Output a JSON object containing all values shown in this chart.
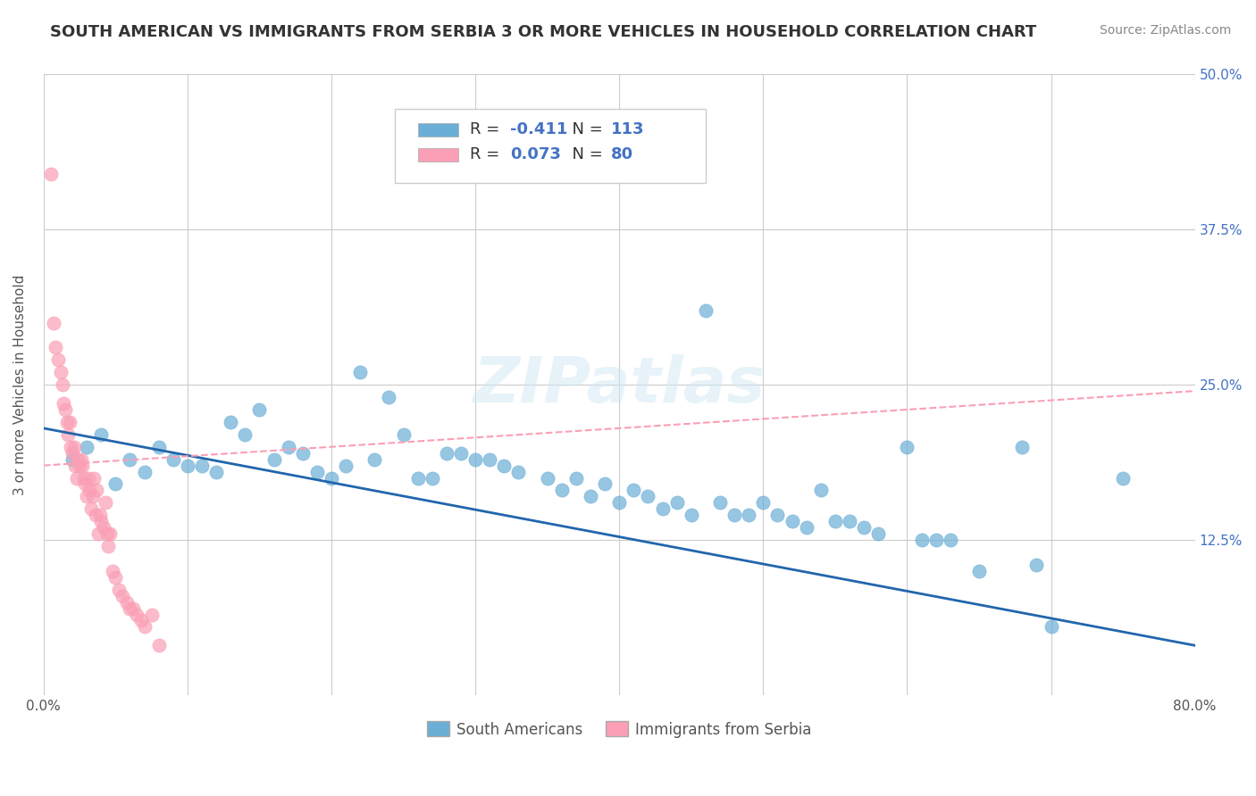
{
  "title": "SOUTH AMERICAN VS IMMIGRANTS FROM SERBIA 3 OR MORE VEHICLES IN HOUSEHOLD CORRELATION CHART",
  "source": "Source: ZipAtlas.com",
  "ylabel": "3 or more Vehicles in Household",
  "xlabel": "",
  "xlim": [
    0.0,
    0.8
  ],
  "ylim": [
    0.0,
    0.5
  ],
  "xticks": [
    0.0,
    0.1,
    0.2,
    0.3,
    0.4,
    0.5,
    0.6,
    0.7,
    0.8
  ],
  "xticklabels": [
    "0.0%",
    "",
    "",
    "",
    "",
    "",
    "",
    "",
    "80.0%"
  ],
  "yticks": [
    0.0,
    0.125,
    0.25,
    0.375,
    0.5
  ],
  "yticklabels": [
    "",
    "12.5%",
    "25.0%",
    "37.5%",
    "50.0%"
  ],
  "blue_color": "#6baed6",
  "pink_color": "#fa9fb5",
  "blue_line_color": "#2166ac",
  "pink_line_color": "#fa9fb5",
  "legend_blue_R": "-0.411",
  "legend_blue_N": "113",
  "legend_pink_R": "0.073",
  "legend_pink_N": "80",
  "watermark": "ZIPatlas",
  "blue_scatter_x": [
    0.02,
    0.03,
    0.04,
    0.05,
    0.06,
    0.07,
    0.08,
    0.09,
    0.1,
    0.11,
    0.12,
    0.13,
    0.14,
    0.15,
    0.16,
    0.17,
    0.18,
    0.19,
    0.2,
    0.21,
    0.22,
    0.23,
    0.24,
    0.25,
    0.26,
    0.27,
    0.28,
    0.29,
    0.3,
    0.31,
    0.32,
    0.33,
    0.35,
    0.36,
    0.37,
    0.38,
    0.39,
    0.4,
    0.41,
    0.42,
    0.43,
    0.44,
    0.45,
    0.46,
    0.47,
    0.48,
    0.49,
    0.5,
    0.51,
    0.52,
    0.53,
    0.54,
    0.55,
    0.56,
    0.57,
    0.58,
    0.6,
    0.61,
    0.62,
    0.63,
    0.65,
    0.68,
    0.69,
    0.7,
    0.75
  ],
  "blue_scatter_y": [
    0.19,
    0.2,
    0.21,
    0.17,
    0.19,
    0.18,
    0.2,
    0.19,
    0.185,
    0.185,
    0.18,
    0.22,
    0.21,
    0.23,
    0.19,
    0.2,
    0.195,
    0.18,
    0.175,
    0.185,
    0.26,
    0.19,
    0.24,
    0.21,
    0.175,
    0.175,
    0.195,
    0.195,
    0.19,
    0.19,
    0.185,
    0.18,
    0.175,
    0.165,
    0.175,
    0.16,
    0.17,
    0.155,
    0.165,
    0.16,
    0.15,
    0.155,
    0.145,
    0.31,
    0.155,
    0.145,
    0.145,
    0.155,
    0.145,
    0.14,
    0.135,
    0.165,
    0.14,
    0.14,
    0.135,
    0.13,
    0.2,
    0.125,
    0.125,
    0.125,
    0.1,
    0.2,
    0.105,
    0.055,
    0.175
  ],
  "pink_scatter_x": [
    0.005,
    0.007,
    0.008,
    0.01,
    0.012,
    0.013,
    0.014,
    0.015,
    0.016,
    0.017,
    0.018,
    0.019,
    0.02,
    0.021,
    0.022,
    0.023,
    0.024,
    0.025,
    0.026,
    0.027,
    0.028,
    0.029,
    0.03,
    0.031,
    0.032,
    0.033,
    0.034,
    0.035,
    0.036,
    0.037,
    0.038,
    0.039,
    0.04,
    0.042,
    0.043,
    0.044,
    0.045,
    0.046,
    0.048,
    0.05,
    0.052,
    0.055,
    0.058,
    0.06,
    0.062,
    0.065,
    0.068,
    0.07,
    0.075,
    0.08
  ],
  "pink_scatter_y": [
    0.42,
    0.3,
    0.28,
    0.27,
    0.26,
    0.25,
    0.235,
    0.23,
    0.22,
    0.21,
    0.22,
    0.2,
    0.195,
    0.2,
    0.185,
    0.175,
    0.19,
    0.185,
    0.19,
    0.185,
    0.175,
    0.17,
    0.16,
    0.175,
    0.165,
    0.15,
    0.16,
    0.175,
    0.145,
    0.165,
    0.13,
    0.145,
    0.14,
    0.135,
    0.155,
    0.13,
    0.12,
    0.13,
    0.1,
    0.095,
    0.085,
    0.08,
    0.075,
    0.07,
    0.07,
    0.065,
    0.06,
    0.055,
    0.065,
    0.04
  ],
  "blue_trendline_x": [
    0.0,
    0.8
  ],
  "blue_trendline_y": [
    0.215,
    0.04
  ],
  "pink_trendline_x": [
    0.0,
    0.8
  ],
  "pink_trendline_y": [
    0.185,
    0.245
  ],
  "legend_labels": [
    "South Americans",
    "Immigrants from Serbia"
  ]
}
